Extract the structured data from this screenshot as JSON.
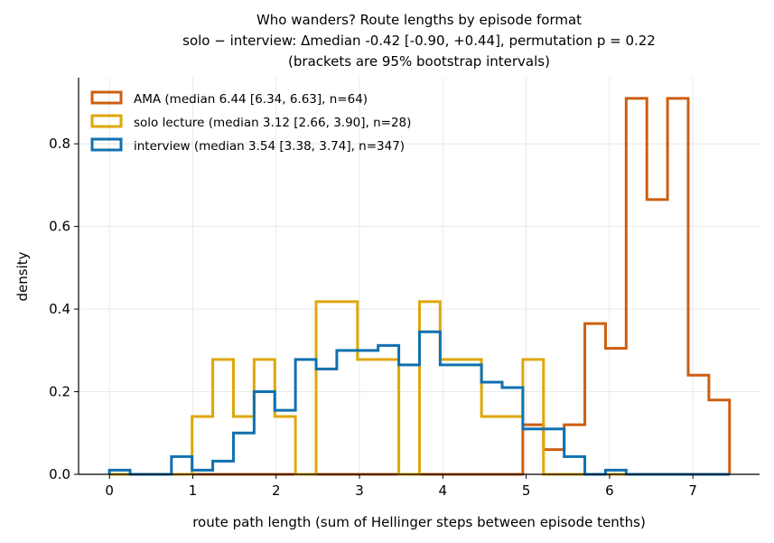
{
  "chart_data": {
    "type": "histogram-step",
    "title_lines": [
      "Who wanders? Route lengths by episode format",
      "solo − interview: Δmedian -0.42 [-0.90, +0.44], permutation p = 0.22",
      "(brackets are 95% bootstrap intervals)"
    ],
    "xlabel": "route path length (sum of Hellinger steps between episode tenths)",
    "ylabel": "density",
    "xlim": [
      -0.37,
      7.8
    ],
    "ylim": [
      0,
      0.96
    ],
    "xticks": [
      0,
      1,
      2,
      3,
      4,
      5,
      6,
      7
    ],
    "xtick_labels": [
      "0",
      "1",
      "2",
      "3",
      "4",
      "5",
      "6",
      "7"
    ],
    "yticks": [
      0,
      0.2,
      0.4,
      0.6,
      0.8
    ],
    "ytick_labels": [
      "0.0",
      "0.2",
      "0.4",
      "0.6",
      "0.8"
    ],
    "grid": true,
    "legend_position": "top-left",
    "bin_edges": [
      0,
      0.248,
      0.496,
      0.744,
      0.992,
      1.24,
      1.488,
      1.736,
      1.984,
      2.232,
      2.48,
      2.728,
      2.976,
      3.224,
      3.472,
      3.72,
      3.968,
      4.216,
      4.464,
      4.712,
      4.96,
      5.208,
      5.456,
      5.704,
      5.952,
      6.2,
      6.448,
      6.696,
      6.944,
      7.192,
      7.44
    ],
    "series": [
      {
        "name": "AMA (median 6.44 [6.34, 6.63], n=64)",
        "color": "#cc5f10",
        "values": [
          0,
          0,
          0,
          0,
          0,
          0,
          0,
          0,
          0,
          0,
          0,
          0,
          0,
          0,
          0,
          0,
          0,
          0,
          0,
          0,
          0.12,
          0.06,
          0.12,
          0.365,
          0.305,
          0.91,
          0.665,
          0.91,
          0.24,
          0.18
        ]
      },
      {
        "name": "solo lecture (median 3.12 [2.66, 3.90], n=28)",
        "color": "#dea70a",
        "values": [
          0,
          0,
          0,
          0,
          0.14,
          0.278,
          0.14,
          0.278,
          0.14,
          0,
          0.418,
          0.418,
          0.278,
          0.278,
          0,
          0.418,
          0.278,
          0.278,
          0.14,
          0.14,
          0.278,
          0,
          0,
          0,
          0,
          0,
          0,
          0,
          0,
          0
        ]
      },
      {
        "name": "interview (median 3.54 [3.38, 3.74], n=347)",
        "color": "#1071b0",
        "values": [
          0.01,
          0,
          0,
          0.043,
          0.01,
          0.032,
          0.1,
          0.2,
          0.155,
          0.278,
          0.255,
          0.3,
          0.3,
          0.312,
          0.265,
          0.345,
          0.265,
          0.265,
          0.223,
          0.21,
          0.11,
          0.11,
          0.043,
          0,
          0.01,
          0,
          0,
          0,
          0,
          0
        ]
      }
    ]
  }
}
